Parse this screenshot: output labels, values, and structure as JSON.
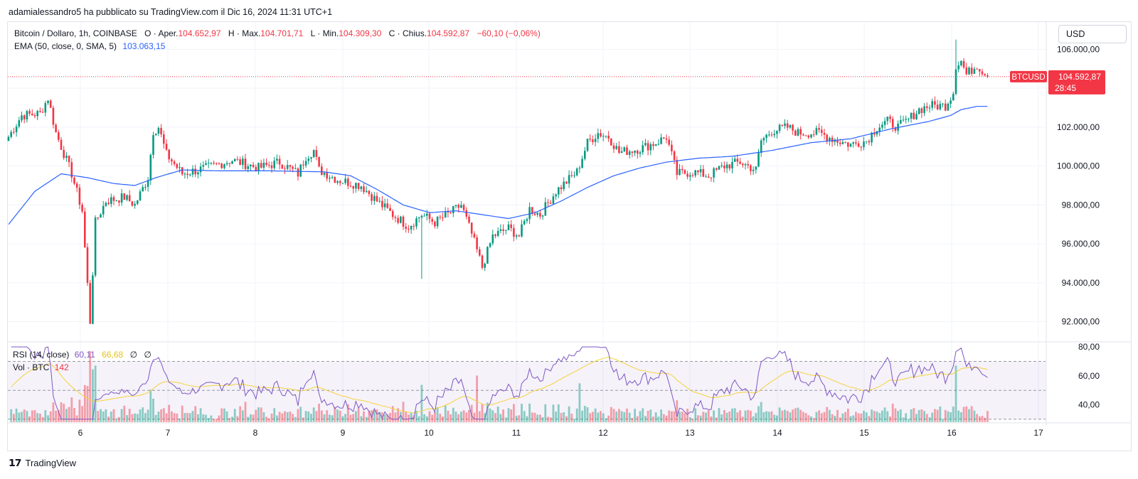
{
  "header": {
    "published_by": "adamialessandro5 ha pubblicato su TradingView.com il Dic 16, 2024 11:31 UTC+1"
  },
  "legend": {
    "symbol": "Bitcoin / Dollaro, 1h, COINBASE",
    "o_label": "O",
    "open_label": "Aper.",
    "open": "104.652,97",
    "h_label": "H",
    "high_label": "Max.",
    "high": "104.701,71",
    "l_label": "L",
    "low_label": "Min.",
    "low": "104.309,30",
    "c_label": "C",
    "close_label": "Chius.",
    "close": "104.592,87",
    "change": "−60,10 (−0,06%)",
    "ema_label": "EMA (50, close, 0, SMA, 5)",
    "ema_value": "103.063,15",
    "rsi_label": "RSI (14, close)",
    "rsi_value": "60,11",
    "rsi_ma_value": "66,68",
    "rsi_extra1": "∅",
    "rsi_extra2": "∅",
    "vol_label": "Vol · BTC",
    "vol_value": "142"
  },
  "currency_button": "USD",
  "price_tag": {
    "symbol": "BTCUSD",
    "price": "104.592,87",
    "countdown": "28:45"
  },
  "footer": {
    "brand": "TradingView"
  },
  "colors": {
    "up": "#089981",
    "down": "#f23645",
    "ema": "#2962ff",
    "rsi": "#7e57c2",
    "rsi_ma": "#f5d33a"
  },
  "chart_data": {
    "type": "candlestick",
    "title": "Bitcoin / Dollaro, 1h, COINBASE",
    "price_axis_ticks": [
      "106.000,00",
      "102.000,00",
      "100.000,00",
      "98.000,00",
      "96.000,00",
      "94.000,00",
      "92.000,00"
    ],
    "rsi_axis_ticks": [
      "80,00",
      "60,00",
      "40,00"
    ],
    "x_tick_labels": [
      "6",
      "7",
      "8",
      "9",
      "10",
      "11",
      "12",
      "13",
      "14",
      "15",
      "16",
      "17"
    ],
    "ylim": [
      91000,
      107400
    ],
    "rsi_ylim": [
      28,
      83
    ],
    "rsi_bands": [
      70,
      50,
      30
    ],
    "current_price": 104592.87,
    "series": [
      {
        "name": "Bitcoin / Dollaro",
        "note": "hourly close path, approx., Dec 5 ~07h to Dec 16 11h",
        "close_keypoints": [
          [
            0,
            101500
          ],
          [
            5,
            102600
          ],
          [
            12,
            102700
          ],
          [
            15,
            103500
          ],
          [
            18,
            101700
          ],
          [
            24,
            99600
          ],
          [
            28,
            97700
          ],
          [
            31,
            92000
          ],
          [
            33,
            97100
          ],
          [
            37,
            98200
          ],
          [
            44,
            98400
          ],
          [
            48,
            98000
          ],
          [
            53,
            99400
          ],
          [
            55,
            101800
          ],
          [
            57,
            102000
          ],
          [
            60,
            100600
          ],
          [
            66,
            99600
          ],
          [
            75,
            99900
          ],
          [
            85,
            100300
          ],
          [
            95,
            99900
          ],
          [
            103,
            100200
          ],
          [
            110,
            99600
          ],
          [
            113,
            100500
          ],
          [
            116,
            100800
          ],
          [
            118,
            99800
          ],
          [
            125,
            99300
          ],
          [
            134,
            99000
          ],
          [
            140,
            98200
          ],
          [
            146,
            97500
          ],
          [
            152,
            96900
          ],
          [
            157,
            97500
          ],
          [
            162,
            97100
          ],
          [
            168,
            97600
          ],
          [
            172,
            98000
          ],
          [
            176,
            96500
          ],
          [
            180,
            94800
          ],
          [
            184,
            96400
          ],
          [
            190,
            96800
          ],
          [
            194,
            96400
          ],
          [
            198,
            97800
          ],
          [
            202,
            97500
          ],
          [
            208,
            98700
          ],
          [
            216,
            99700
          ],
          [
            220,
            101200
          ],
          [
            224,
            101700
          ],
          [
            228,
            101500
          ],
          [
            232,
            100700
          ],
          [
            240,
            100900
          ],
          [
            246,
            101200
          ],
          [
            250,
            101500
          ],
          [
            254,
            99600
          ],
          [
            260,
            99700
          ],
          [
            266,
            99500
          ],
          [
            272,
            100000
          ],
          [
            278,
            100200
          ],
          [
            284,
            99800
          ],
          [
            286,
            101300
          ],
          [
            290,
            101800
          ],
          [
            296,
            102000
          ],
          [
            300,
            101700
          ],
          [
            308,
            101700
          ],
          [
            315,
            101300
          ],
          [
            320,
            101100
          ],
          [
            326,
            101300
          ],
          [
            330,
            102000
          ],
          [
            334,
            102300
          ],
          [
            338,
            102000
          ],
          [
            342,
            102400
          ],
          [
            346,
            102900
          ],
          [
            350,
            103100
          ],
          [
            356,
            103100
          ],
          [
            359,
            103800
          ],
          [
            360,
            105200
          ],
          [
            362,
            105400
          ],
          [
            364,
            104700
          ],
          [
            368,
            105200
          ],
          [
            372,
            104600
          ]
        ]
      },
      {
        "name": "EMA (50, close, 0, SMA, 5)",
        "keypoints": [
          [
            0,
            97000
          ],
          [
            10,
            98700
          ],
          [
            20,
            99600
          ],
          [
            30,
            99400
          ],
          [
            40,
            99100
          ],
          [
            48,
            99000
          ],
          [
            56,
            99400
          ],
          [
            66,
            99800
          ],
          [
            80,
            99750
          ],
          [
            100,
            99750
          ],
          [
            120,
            99700
          ],
          [
            130,
            99500
          ],
          [
            140,
            98800
          ],
          [
            150,
            98000
          ],
          [
            160,
            97600
          ],
          [
            170,
            97700
          ],
          [
            180,
            97500
          ],
          [
            190,
            97300
          ],
          [
            200,
            97600
          ],
          [
            210,
            98200
          ],
          [
            220,
            98900
          ],
          [
            230,
            99500
          ],
          [
            240,
            99900
          ],
          [
            250,
            100200
          ],
          [
            262,
            100400
          ],
          [
            275,
            100500
          ],
          [
            290,
            100800
          ],
          [
            305,
            101200
          ],
          [
            320,
            101400
          ],
          [
            335,
            101900
          ],
          [
            350,
            102300
          ],
          [
            358,
            102600
          ],
          [
            362,
            102900
          ],
          [
            368,
            103063
          ]
        ]
      }
    ]
  }
}
